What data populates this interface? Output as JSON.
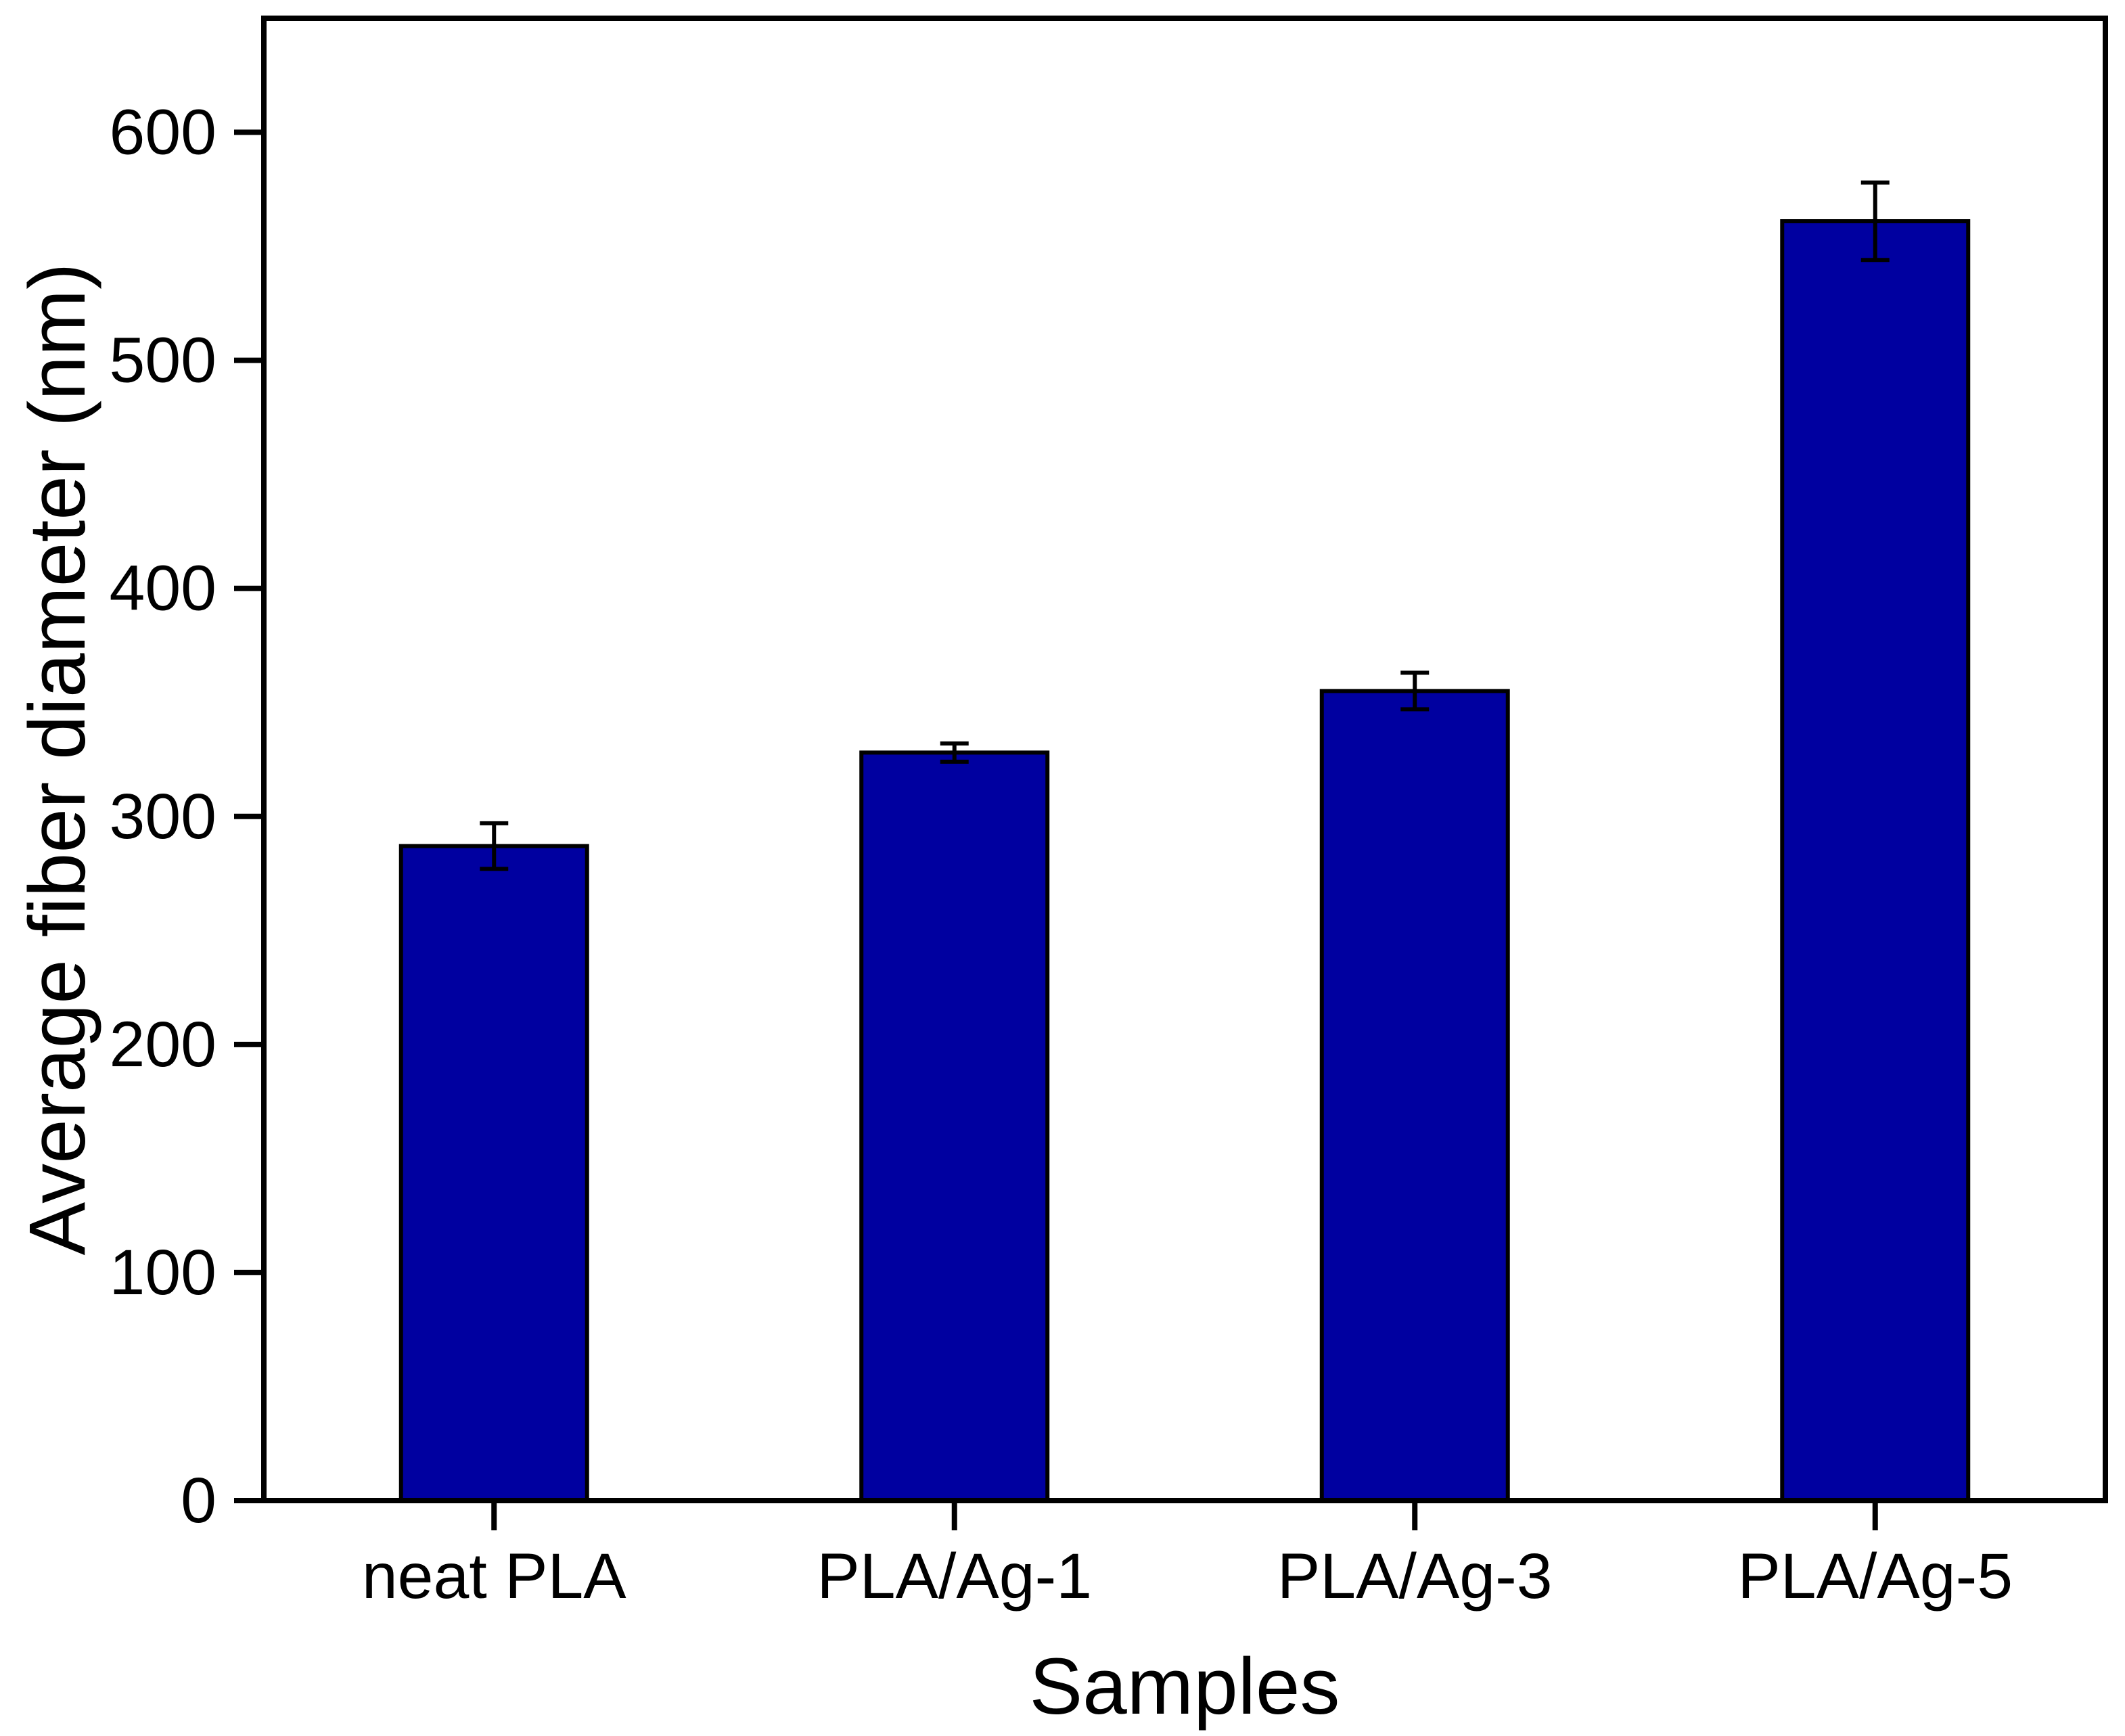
{
  "figure": {
    "background": "#ffffff"
  },
  "chart_data": {
    "type": "bar",
    "title": "",
    "xlabel": "Samples",
    "ylabel": "Average fiber diameter (nm)",
    "categories": [
      "neat PLA",
      "PLA/Ag-1",
      "PLA/Ag-3",
      "PLA/Ag-5"
    ],
    "values": [
      287,
      328,
      355,
      561
    ],
    "errors": [
      10,
      4,
      8,
      17
    ],
    "ylim": [
      0,
      650
    ],
    "yticks": [
      0,
      100,
      200,
      300,
      400,
      500,
      600
    ],
    "grid": false,
    "legend": "none",
    "frame": "full-box",
    "colors": {
      "bar_fill": "#0000A0",
      "bar_edge": "#000000",
      "error_bar": "#000000",
      "axis": "#000000",
      "text": "#000000",
      "background": "#ffffff"
    }
  }
}
